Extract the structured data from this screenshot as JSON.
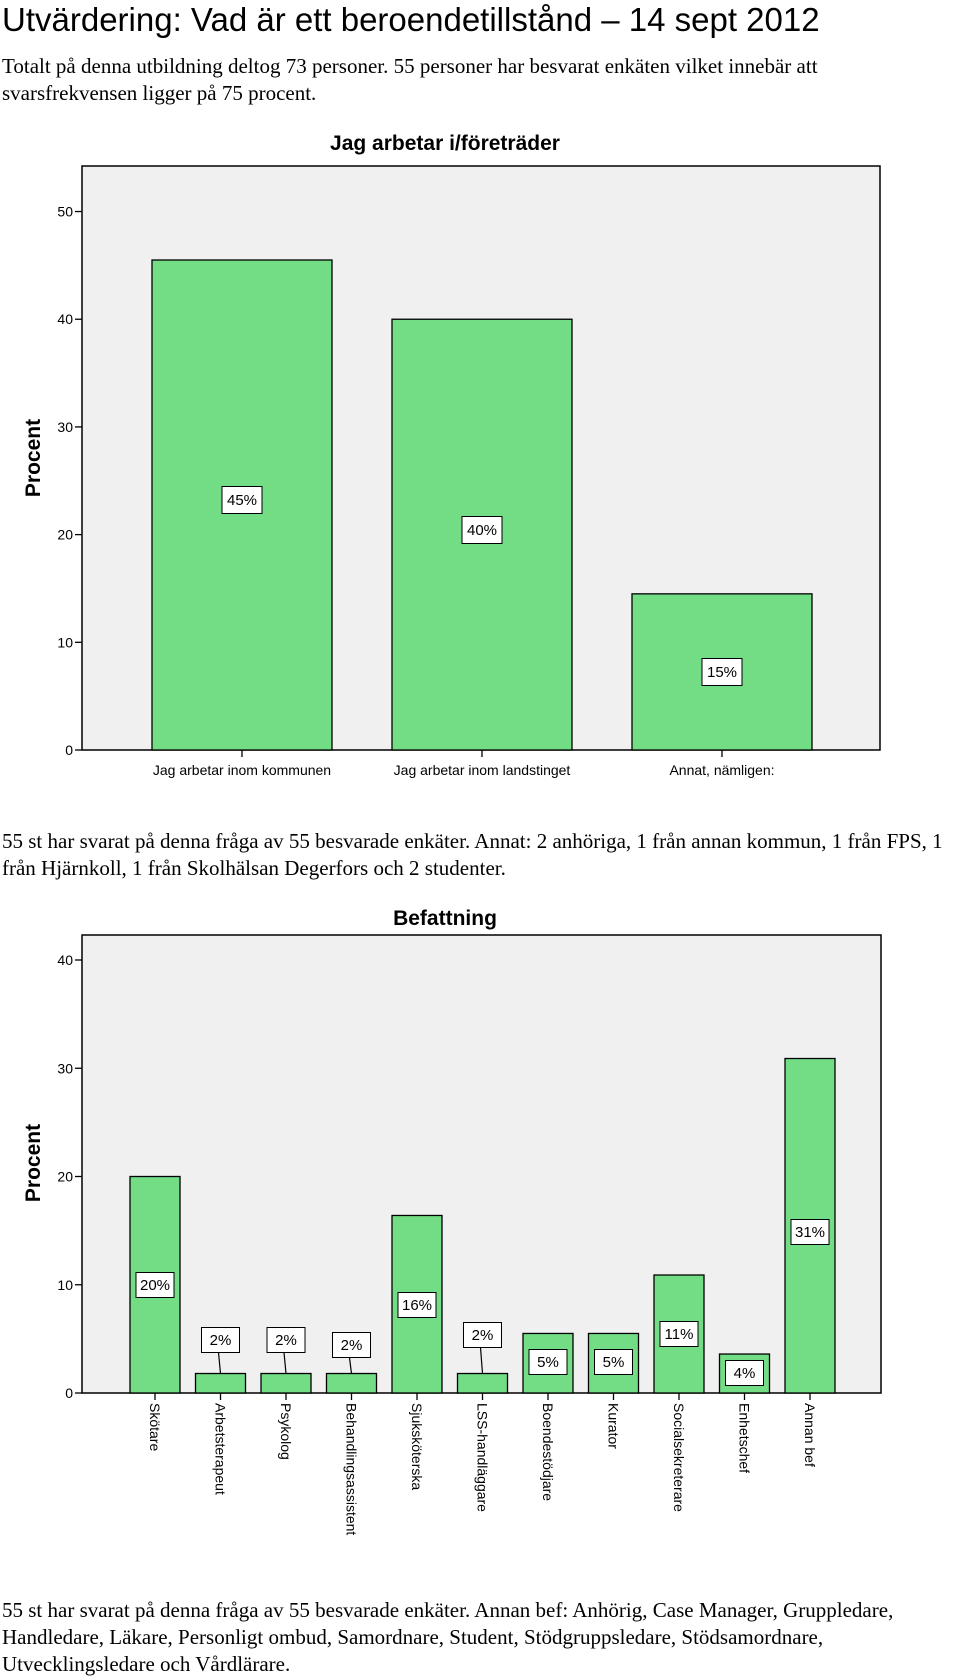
{
  "title": "Utvärdering: Vad är ett beroendetillstånd – 14 sept 2012",
  "intro": "Totalt på denna utbildning deltog 73 personer. 55 personer har besvarat enkäten vilket innebär att svarsfrekvensen ligger på 75 procent.",
  "note1": "55 st har svarat på denna fråga av 55 besvarade enkäter. Annat: 2 anhöriga, 1 från annan kommun, 1 från FPS, 1 från Hjärnkoll, 1 från Skolhälsan Degerfors och 2 studenter.",
  "note2": "55 st har svarat på denna fråga av 55 besvarade enkäter. Annan bef: Anhörig, Case Manager, Gruppledare, Handledare, Läkare, Personligt ombud, Samordnare, Student, Stödgruppsledare, Stödsamordnare, Utvecklingsledare och Vårdlärare.",
  "colors": {
    "bar": "#72dd85",
    "plot_bg": "#f0f0f0",
    "border": "#000000"
  },
  "chart_data": [
    {
      "type": "bar",
      "title": "Jag arbetar i/företräder",
      "ylabel": "Procent",
      "xlabel": "",
      "ylim": [
        0,
        52
      ],
      "yticks": [
        0,
        10,
        20,
        30,
        40,
        50
      ],
      "categories": [
        "Jag arbetar inom kommunen",
        "Jag arbetar inom landstinget",
        "Annat, nämligen:"
      ],
      "values": [
        45.5,
        40,
        14.5
      ],
      "data_labels": [
        "45%",
        "40%",
        "15%"
      ],
      "grid": false
    },
    {
      "type": "bar",
      "title": "Befattning",
      "ylabel": "Procent",
      "xlabel": "",
      "ylim": [
        0,
        42
      ],
      "yticks": [
        0,
        10,
        20,
        30,
        40
      ],
      "categories": [
        "Skötare",
        "Arbetsterapeut",
        "Psykolog",
        "Behandlingsassistent",
        "Sjuksköterska",
        "LSS-handläggare",
        "Boendestödjare",
        "Kurator",
        "Socialsekreterare",
        "Enhetschef",
        "Annan bef"
      ],
      "values": [
        20,
        1.8,
        1.8,
        1.8,
        16.4,
        1.8,
        5.5,
        5.5,
        10.9,
        3.6,
        30.9
      ],
      "data_labels": [
        "20%",
        "2%",
        "2%",
        "2%",
        "16%",
        "2%",
        "5%",
        "5%",
        "11%",
        "4%",
        "31%"
      ],
      "grid": false
    }
  ]
}
